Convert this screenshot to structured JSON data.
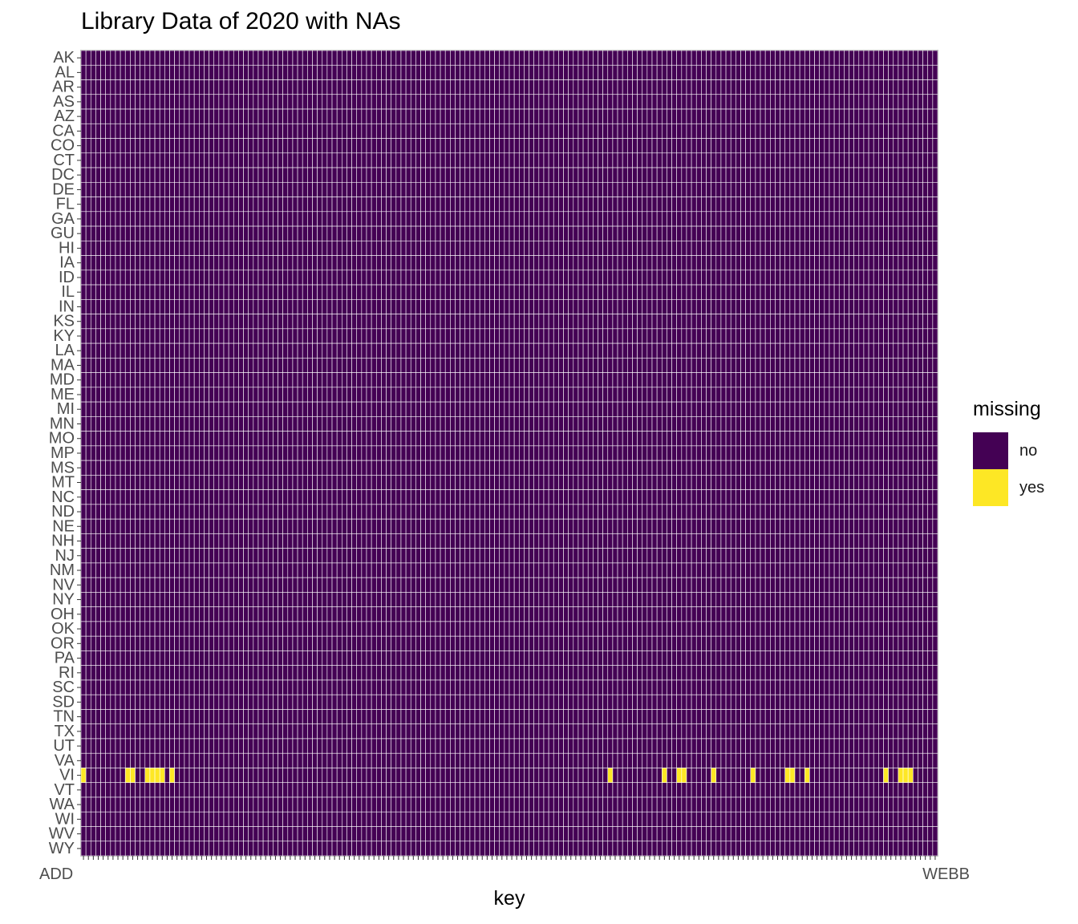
{
  "chart_data": {
    "type": "heatmap",
    "title": "Library Data of 2020 with NAs",
    "xlabel": "key",
    "ylabel": "",
    "y_categories": [
      "AK",
      "AL",
      "AR",
      "AS",
      "AZ",
      "CA",
      "CO",
      "CT",
      "DC",
      "DE",
      "FL",
      "GA",
      "GU",
      "HI",
      "IA",
      "ID",
      "IL",
      "IN",
      "KS",
      "KY",
      "LA",
      "MA",
      "MD",
      "ME",
      "MI",
      "MN",
      "MO",
      "MP",
      "MS",
      "MT",
      "NC",
      "ND",
      "NE",
      "NH",
      "NJ",
      "NM",
      "NV",
      "NY",
      "OH",
      "OK",
      "OR",
      "PA",
      "RI",
      "SC",
      "SD",
      "TN",
      "TX",
      "UT",
      "VA",
      "VI",
      "VT",
      "WA",
      "WI",
      "WV",
      "WY"
    ],
    "x_count": 174,
    "x_tick_label_first": "ADD",
    "x_tick_label_last": "WEBB",
    "fill_legend": {
      "title": "missing",
      "levels": [
        "no",
        "yes"
      ]
    },
    "colors": {
      "no": "#440154",
      "yes": "#FDE725"
    },
    "missing_cells": [
      {
        "state": "VI",
        "key_indices": [
          0,
          9,
          10,
          13,
          14,
          15,
          16,
          18,
          107,
          118,
          121,
          122,
          128,
          136,
          143,
          144,
          147,
          163,
          166,
          167,
          168
        ]
      }
    ],
    "grid": false,
    "legend_position": "right"
  }
}
